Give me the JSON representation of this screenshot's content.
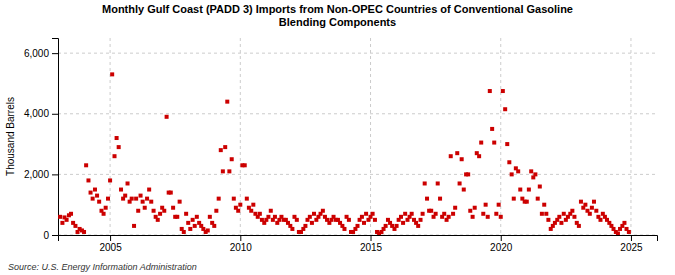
{
  "chart_data": {
    "type": "scatter",
    "title": "Monthly Gulf Coast (PADD 3) Imports from Non-OPEC Countries of Conventional Gasoline\nBlending Components",
    "y_label": "Thousand Barrels",
    "annotations": [
      "Source: U.S. Energy Information Administration"
    ],
    "color": "#cc0000",
    "marker": "square",
    "grid": true,
    "xlim": [
      2003.0,
      2026.0
    ],
    "xticks": [
      2005,
      2010,
      2015,
      2020,
      2025
    ],
    "ylim": [
      0,
      6500
    ],
    "yticks": [
      0,
      {
        "value": 2000,
        "label": "2,000"
      },
      {
        "value": 4000,
        "label": "4,000"
      },
      {
        "value": 6000,
        "label": "6,000"
      }
    ],
    "x": [
      2003.08,
      2003.17,
      2003.25,
      2003.33,
      2003.42,
      2003.5,
      2003.58,
      2003.67,
      2003.75,
      2003.83,
      2003.92,
      2004.0,
      2004.08,
      2004.17,
      2004.25,
      2004.33,
      2004.42,
      2004.5,
      2004.58,
      2004.67,
      2004.75,
      2004.83,
      2004.92,
      2005.0,
      2005.08,
      2005.17,
      2005.25,
      2005.33,
      2005.42,
      2005.5,
      2005.58,
      2005.67,
      2005.75,
      2005.83,
      2005.92,
      2006.0,
      2006.08,
      2006.17,
      2006.25,
      2006.33,
      2006.42,
      2006.5,
      2006.58,
      2006.67,
      2006.75,
      2006.83,
      2006.92,
      2007.0,
      2007.08,
      2007.17,
      2007.25,
      2007.33,
      2007.42,
      2007.5,
      2007.58,
      2007.67,
      2007.75,
      2007.83,
      2007.92,
      2008.0,
      2008.08,
      2008.17,
      2008.25,
      2008.33,
      2008.42,
      2008.5,
      2008.58,
      2008.67,
      2008.75,
      2008.83,
      2008.92,
      2009.0,
      2009.08,
      2009.17,
      2009.25,
      2009.33,
      2009.42,
      2009.5,
      2009.58,
      2009.67,
      2009.75,
      2009.83,
      2009.92,
      2010.0,
      2010.08,
      2010.17,
      2010.25,
      2010.33,
      2010.42,
      2010.5,
      2010.58,
      2010.67,
      2010.75,
      2010.83,
      2010.92,
      2011.0,
      2011.08,
      2011.17,
      2011.25,
      2011.33,
      2011.42,
      2011.5,
      2011.58,
      2011.67,
      2011.75,
      2011.83,
      2011.92,
      2012.0,
      2012.08,
      2012.17,
      2012.25,
      2012.33,
      2012.42,
      2012.5,
      2012.58,
      2012.67,
      2012.75,
      2012.83,
      2012.92,
      2013.0,
      2013.08,
      2013.17,
      2013.25,
      2013.33,
      2013.42,
      2013.5,
      2013.58,
      2013.67,
      2013.75,
      2013.83,
      2013.92,
      2014.0,
      2014.08,
      2014.17,
      2014.25,
      2014.33,
      2014.42,
      2014.5,
      2014.58,
      2014.67,
      2014.75,
      2014.83,
      2014.92,
      2015.0,
      2015.08,
      2015.17,
      2015.25,
      2015.33,
      2015.42,
      2015.5,
      2015.58,
      2015.67,
      2015.75,
      2015.83,
      2015.92,
      2016.0,
      2016.08,
      2016.17,
      2016.25,
      2016.33,
      2016.42,
      2016.5,
      2016.58,
      2016.67,
      2016.75,
      2016.83,
      2016.92,
      2017.0,
      2017.08,
      2017.17,
      2017.25,
      2017.33,
      2017.42,
      2017.5,
      2017.58,
      2017.67,
      2017.75,
      2017.83,
      2017.92,
      2018.0,
      2018.08,
      2018.17,
      2018.25,
      2018.33,
      2018.42,
      2018.5,
      2018.58,
      2018.67,
      2018.75,
      2018.83,
      2018.92,
      2019.0,
      2019.08,
      2019.17,
      2019.25,
      2019.33,
      2019.42,
      2019.5,
      2019.58,
      2019.67,
      2019.75,
      2019.83,
      2019.92,
      2020.0,
      2020.08,
      2020.17,
      2020.25,
      2020.33,
      2020.42,
      2020.5,
      2020.58,
      2020.67,
      2020.75,
      2020.83,
      2020.92,
      2021.0,
      2021.08,
      2021.17,
      2021.25,
      2021.33,
      2021.42,
      2021.5,
      2021.58,
      2021.67,
      2021.75,
      2021.83,
      2021.92,
      2022.0,
      2022.08,
      2022.17,
      2022.25,
      2022.33,
      2022.42,
      2022.5,
      2022.58,
      2022.67,
      2022.75,
      2022.83,
      2022.92,
      2023.0,
      2023.08,
      2023.17,
      2023.25,
      2023.33,
      2023.42,
      2023.5,
      2023.58,
      2023.67,
      2023.75,
      2023.83,
      2023.92,
      2024.0,
      2024.08,
      2024.17,
      2024.25,
      2024.33,
      2024.42,
      2024.5,
      2024.58,
      2024.67,
      2024.75,
      2024.83,
      2024.92
    ],
    "values": [
      600,
      400,
      580,
      500,
      650,
      700,
      400,
      300,
      100,
      200,
      150,
      100,
      2300,
      1800,
      1400,
      1200,
      1500,
      1300,
      1100,
      800,
      700,
      900,
      1200,
      1800,
      5300,
      2600,
      3200,
      2900,
      1500,
      1200,
      1300,
      1700,
      1100,
      1200,
      300,
      1200,
      800,
      1300,
      1100,
      900,
      1200,
      1500,
      1100,
      800,
      600,
      500,
      700,
      900,
      800,
      3900,
      1400,
      1400,
      900,
      600,
      600,
      1100,
      200,
      100,
      700,
      400,
      200,
      500,
      300,
      600,
      400,
      300,
      200,
      100,
      150,
      600,
      400,
      300,
      800,
      1200,
      2800,
      2100,
      2900,
      4400,
      2100,
      2500,
      1200,
      900,
      800,
      1000,
      2300,
      2300,
      1200,
      900,
      800,
      1000,
      700,
      600,
      700,
      500,
      400,
      500,
      600,
      800,
      500,
      600,
      400,
      500,
      600,
      500,
      500,
      400,
      300,
      200,
      600,
      500,
      100,
      100,
      200,
      300,
      500,
      600,
      400,
      700,
      500,
      600,
      700,
      800,
      600,
      500,
      400,
      500,
      600,
      500,
      500,
      400,
      300,
      200,
      600,
      500,
      100,
      100,
      200,
      300,
      500,
      600,
      400,
      700,
      500,
      600,
      700,
      500,
      100,
      50,
      100,
      200,
      300,
      500,
      400,
      300,
      200,
      300,
      500,
      600,
      400,
      700,
      500,
      600,
      700,
      500,
      400,
      300,
      500,
      700,
      1700,
      1200,
      800,
      800,
      600,
      700,
      1700,
      1200,
      600,
      700,
      500,
      600,
      2600,
      700,
      900,
      2700,
      1700,
      2500,
      1500,
      2000,
      2000,
      800,
      600,
      900,
      2700,
      2600,
      3050,
      700,
      1000,
      600,
      4750,
      3500,
      3050,
      700,
      1000,
      600,
      4750,
      4150,
      3000,
      2400,
      2000,
      1200,
      2200,
      2100,
      1500,
      1200,
      1100,
      1100,
      1500,
      2100,
      1900,
      2000,
      1200,
      1600,
      700,
      1000,
      700,
      500,
      200,
      300,
      400,
      500,
      600,
      400,
      700,
      500,
      600,
      700,
      800,
      600,
      400,
      300,
      1100,
      900,
      1000,
      800,
      700,
      900,
      1100,
      800,
      600,
      500,
      700,
      600,
      500,
      400,
      300,
      200,
      100,
      50,
      200,
      300,
      400,
      200,
      100
    ]
  }
}
